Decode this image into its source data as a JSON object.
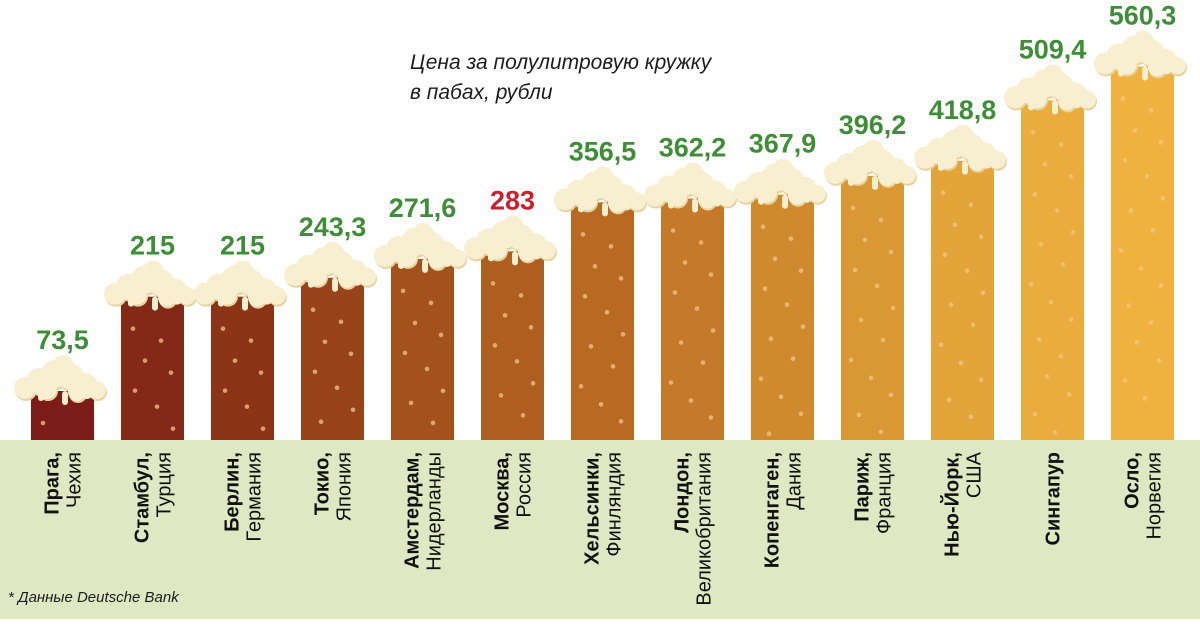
{
  "title_lines": [
    "Цена за полулитровую кружку",
    "в пабах, рубли"
  ],
  "footnote": "* Данные Deutsche Bank",
  "colors": {
    "ground": "#dfe8c3",
    "value_label": "#3e8e38",
    "highlight_label": "#c8202e",
    "foam": "#f8eed0",
    "foam_shadow": "#e7d3a0",
    "bubble": "#f2c58a",
    "bar_gradient": [
      "#7b1c18",
      "#8c3418",
      "#a3521c",
      "#b96a22",
      "#cf8a2e",
      "#e3a53a",
      "#f0b23f"
    ]
  },
  "chart_data": {
    "type": "bar",
    "title": "Цена за полулитровую кружку в пабах, рубли",
    "categories": [
      {
        "city": "Прага",
        "country": "Чехия",
        "label_lines": [
          {
            "city": "Прага,",
            "country": ""
          },
          {
            "city": "",
            "country": "Чехия"
          }
        ]
      },
      {
        "city": "Стамбул",
        "country": "Турция",
        "label_lines": [
          {
            "city": "Стамбул,",
            "country": ""
          },
          {
            "city": "",
            "country": "Турция"
          }
        ]
      },
      {
        "city": "Берлин",
        "country": "Германия",
        "label_lines": [
          {
            "city": "Берлин,",
            "country": ""
          },
          {
            "city": "",
            "country": "Германия"
          }
        ]
      },
      {
        "city": "Токио",
        "country": "Япония",
        "label_lines": [
          {
            "city": "Токио,",
            "country": ""
          },
          {
            "city": "",
            "country": "Япония"
          }
        ]
      },
      {
        "city": "Амстердам",
        "country": "Нидерланды",
        "label_lines": [
          {
            "city": "Амстердам,",
            "country": ""
          },
          {
            "city": "",
            "country": "Нидерланды"
          }
        ]
      },
      {
        "city": "Москва",
        "country": "Россия",
        "label_lines": [
          {
            "city": "Москва,",
            "country": ""
          },
          {
            "city": "",
            "country": "Россия"
          }
        ]
      },
      {
        "city": "Хельсинки",
        "country": "Финляндия",
        "label_lines": [
          {
            "city": "Хельсинки,",
            "country": ""
          },
          {
            "city": "",
            "country": "Финляндия"
          }
        ]
      },
      {
        "city": "Лондон",
        "country": "Великобритания",
        "label_lines": [
          {
            "city": "Лондон,",
            "country": ""
          },
          {
            "city": "",
            "country": "Великобритания"
          }
        ]
      },
      {
        "city": "Копенгаген",
        "country": "Дания",
        "label_lines": [
          {
            "city": "Копенгаген,",
            "country": ""
          },
          {
            "city": "",
            "country": "Дания"
          }
        ]
      },
      {
        "city": "Париж",
        "country": "Франция",
        "label_lines": [
          {
            "city": "Париж,",
            "country": ""
          },
          {
            "city": "",
            "country": "Франция"
          }
        ]
      },
      {
        "city": "Нью-Йорк",
        "country": "США",
        "label_lines": [
          {
            "city": "Нью-Йорк,",
            "country": ""
          },
          {
            "city": "",
            "country": "США"
          }
        ]
      },
      {
        "city": "Сингапур",
        "country": "",
        "label_lines": [
          {
            "city": "Сингапур",
            "country": ""
          }
        ]
      },
      {
        "city": "Осло",
        "country": "Норвегия",
        "label_lines": [
          {
            "city": "Осло,",
            "country": ""
          },
          {
            "city": "",
            "country": "Норвегия"
          }
        ]
      }
    ],
    "values": [
      73.5,
      215,
      215,
      243.3,
      271.6,
      283,
      356.5,
      362.2,
      367.9,
      396.2,
      418.8,
      509.4,
      560.3
    ],
    "value_labels": [
      "73,5",
      "215",
      "215",
      "243,3",
      "271,6",
      "283",
      "356,5",
      "362,2",
      "367,9",
      "396,2",
      "418,8",
      "509,4",
      "560,3"
    ],
    "highlight_index": 5,
    "ylim": [
      0,
      600
    ],
    "xlabel": "",
    "ylabel": "",
    "grid": false
  }
}
